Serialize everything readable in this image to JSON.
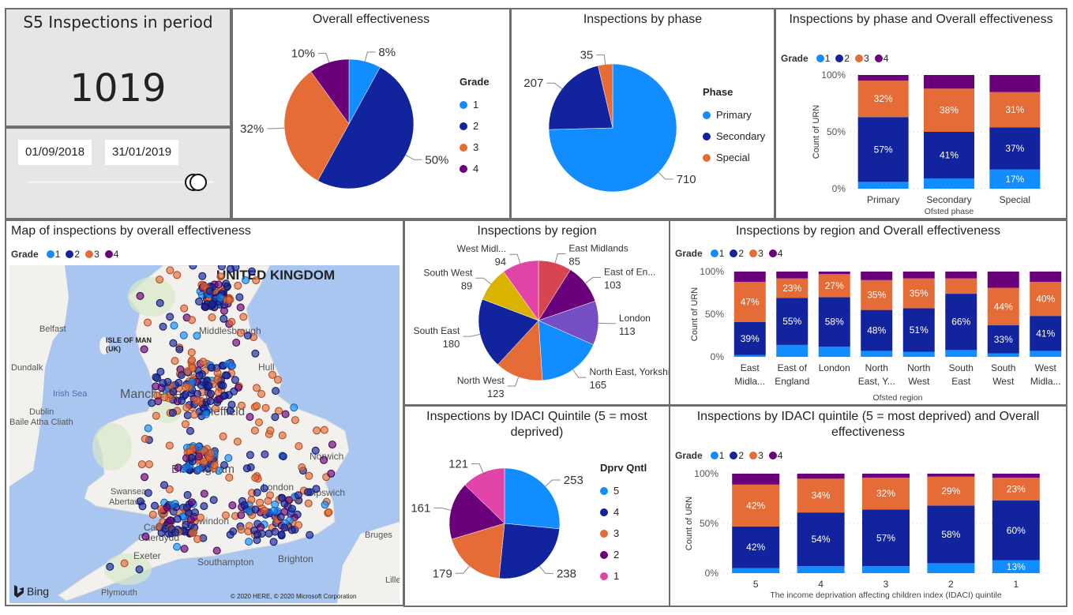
{
  "colors": {
    "grade1": "#118DFF",
    "grade2": "#12239E",
    "grade3": "#E66C37",
    "grade4": "#6B007B"
  },
  "kpi": {
    "title": "S5 Inspections in period",
    "value": "1019"
  },
  "date_slicer": {
    "start": "01/09/2018",
    "end": "31/01/2019"
  },
  "overall_pie": {
    "title": "Overall effectiveness",
    "legend_title": "Grade",
    "slices": [
      {
        "name": "1",
        "label": "8%",
        "value": 8,
        "color": "#118DFF"
      },
      {
        "name": "2",
        "label": "50%",
        "value": 50,
        "color": "#12239E"
      },
      {
        "name": "3",
        "label": "32%",
        "value": 32,
        "color": "#E66C37"
      },
      {
        "name": "4",
        "label": "10%",
        "value": 10,
        "color": "#6B007B"
      }
    ]
  },
  "phase_pie": {
    "title": "Inspections by phase",
    "legend_title": "Phase",
    "slices": [
      {
        "name": "Primary",
        "label": "710",
        "value": 710,
        "color": "#118DFF"
      },
      {
        "name": "Secondary",
        "label": "207",
        "value": 207,
        "color": "#12239E"
      },
      {
        "name": "Special",
        "label": "35",
        "value": 35,
        "color": "#E66C37"
      }
    ]
  },
  "phase_bars": {
    "title": "Inspections by phase and Overall effectiveness",
    "legend_title": "Grade",
    "legend": [
      "1",
      "2",
      "3",
      "4"
    ],
    "ylabel": "Count of URN",
    "xlabel": "Ofsted phase",
    "yticks": [
      "0%",
      "50%",
      "100%"
    ],
    "categories": [
      "Primary",
      "Secondary",
      "Special"
    ],
    "series": [
      [
        6,
        9,
        17
      ],
      [
        57,
        41,
        37
      ],
      [
        32,
        38,
        31
      ],
      [
        5,
        12,
        15
      ]
    ],
    "labels": [
      [
        "",
        "",
        "17%"
      ],
      [
        "57%",
        "41%",
        "37%"
      ],
      [
        "32%",
        "38%",
        "31%"
      ],
      [
        "",
        "",
        ""
      ]
    ]
  },
  "map": {
    "title": "Map of inspections by overall effectiveness",
    "legend_title": "Grade",
    "legend": [
      "1",
      "2",
      "3",
      "4"
    ],
    "places": {
      "uk": "UNITED KINGDOM",
      "belfast": "Belfast",
      "iom": "ISLE OF MAN",
      "iom2": "(UK)",
      "dundalk": "Dundalk",
      "irish_sea": "Irish Sea",
      "dublin": "Dublin",
      "dublin2": "Baile Atha Cliath",
      "manchester": "Manchester",
      "middlesbrough": "Middlesbrough",
      "hull": "Hull",
      "sheffield": "Sheffield",
      "birmingham": "Birmingham",
      "norwich": "Norwich",
      "london": "London",
      "ipswich": "Ipswich",
      "swansea": "Swansea",
      "swansea2": "Abertawe",
      "cardiff": "Cardiff",
      "cardiff2": "Caerdydd",
      "swindon": "Swindon",
      "exeter": "Exeter",
      "southampton": "Southampton",
      "brighton": "Brighton",
      "plymouth": "Plymouth",
      "bruges": "Bruges",
      "lille": "Lille"
    },
    "bing": "Bing",
    "copyright": "© 2020 HERE, © 2020 Microsoft Corporation"
  },
  "region_pie": {
    "title": "Inspections by region",
    "slices": [
      {
        "name": "East Midlands",
        "label": "85",
        "value": 85,
        "color": "#D64550"
      },
      {
        "name": "East of En...",
        "label": "103",
        "value": 103,
        "color": "#6B007B"
      },
      {
        "name": "London",
        "label": "113",
        "value": 113,
        "color": "#744EC2"
      },
      {
        "name": "North East, Yorkshi...",
        "label": "165",
        "value": 165,
        "color": "#118DFF"
      },
      {
        "name": "North West",
        "label": "123",
        "value": 123,
        "color": "#E66C37"
      },
      {
        "name": "South East",
        "label": "180",
        "value": 180,
        "color": "#12239E"
      },
      {
        "name": "South West",
        "label": "89",
        "value": 89,
        "color": "#D9B300"
      },
      {
        "name": "West Midl...",
        "label": "94",
        "value": 94,
        "color": "#E044A7"
      }
    ]
  },
  "region_bars": {
    "title": "Inspections by region and Overall effectiveness",
    "legend_title": "Grade",
    "legend": [
      "1",
      "2",
      "3",
      "4"
    ],
    "ylabel": "Count of URN",
    "xlabel": "Ofsted region",
    "yticks": [
      "0%",
      "50%",
      "100%"
    ],
    "categories": [
      [
        "East",
        "Midla..."
      ],
      [
        "East of",
        "England"
      ],
      [
        "London"
      ],
      [
        "North",
        "East, Y..."
      ],
      [
        "North",
        "West"
      ],
      [
        "South",
        "East"
      ],
      [
        "South",
        "West"
      ],
      [
        "West",
        "Midla..."
      ]
    ],
    "series": [
      [
        2,
        14,
        12,
        7,
        6,
        8,
        4,
        7
      ],
      [
        39,
        55,
        58,
        48,
        51,
        66,
        33,
        41
      ],
      [
        47,
        23,
        27,
        35,
        35,
        18,
        44,
        40
      ],
      [
        12,
        8,
        3,
        10,
        8,
        8,
        19,
        12
      ]
    ],
    "labels": [
      [
        "",
        "",
        "",
        "",
        "",
        "",
        "",
        ""
      ],
      [
        "39%",
        "55%",
        "58%",
        "48%",
        "51%",
        "66%",
        "33%",
        "41%"
      ],
      [
        "47%",
        "23%",
        "27%",
        "35%",
        "35%",
        "",
        "44%",
        "40%"
      ],
      [
        "",
        "",
        "",
        "",
        "",
        "",
        "",
        ""
      ]
    ]
  },
  "idaci_pie": {
    "title": "Inspections by IDACI Quintile (5 = most deprived)",
    "legend_title": "Dprv Qntl",
    "slices": [
      {
        "name": "5",
        "label": "253",
        "value": 253,
        "color": "#118DFF"
      },
      {
        "name": "4",
        "label": "238",
        "value": 238,
        "color": "#12239E"
      },
      {
        "name": "3",
        "label": "179",
        "value": 179,
        "color": "#E66C37"
      },
      {
        "name": "2",
        "label": "161",
        "value": 161,
        "color": "#6B007B"
      },
      {
        "name": "1",
        "label": "121",
        "value": 121,
        "color": "#E044A7"
      }
    ]
  },
  "idaci_bars": {
    "title": "Inspections by IDACI quintile (5 = most deprived) and Overall effectiveness",
    "legend_title": "Grade",
    "legend": [
      "1",
      "2",
      "3",
      "4"
    ],
    "ylabel": "Count of URN",
    "xlabel": "The income deprivation affecting children index (IDACI) quintile",
    "yticks": [
      "0%",
      "50%",
      "100%"
    ],
    "categories": [
      [
        "5"
      ],
      [
        "4"
      ],
      [
        "3"
      ],
      [
        "2"
      ],
      [
        "1"
      ]
    ],
    "series": [
      [
        5,
        7,
        7,
        10,
        13
      ],
      [
        42,
        54,
        57,
        58,
        60
      ],
      [
        42,
        34,
        32,
        29,
        23
      ],
      [
        11,
        5,
        4,
        3,
        4
      ]
    ],
    "labels": [
      [
        "",
        "",
        "",
        "",
        "13%"
      ],
      [
        "42%",
        "54%",
        "57%",
        "58%",
        "60%"
      ],
      [
        "42%",
        "34%",
        "32%",
        "29%",
        "23%"
      ],
      [
        "",
        "",
        "",
        "",
        ""
      ]
    ]
  }
}
